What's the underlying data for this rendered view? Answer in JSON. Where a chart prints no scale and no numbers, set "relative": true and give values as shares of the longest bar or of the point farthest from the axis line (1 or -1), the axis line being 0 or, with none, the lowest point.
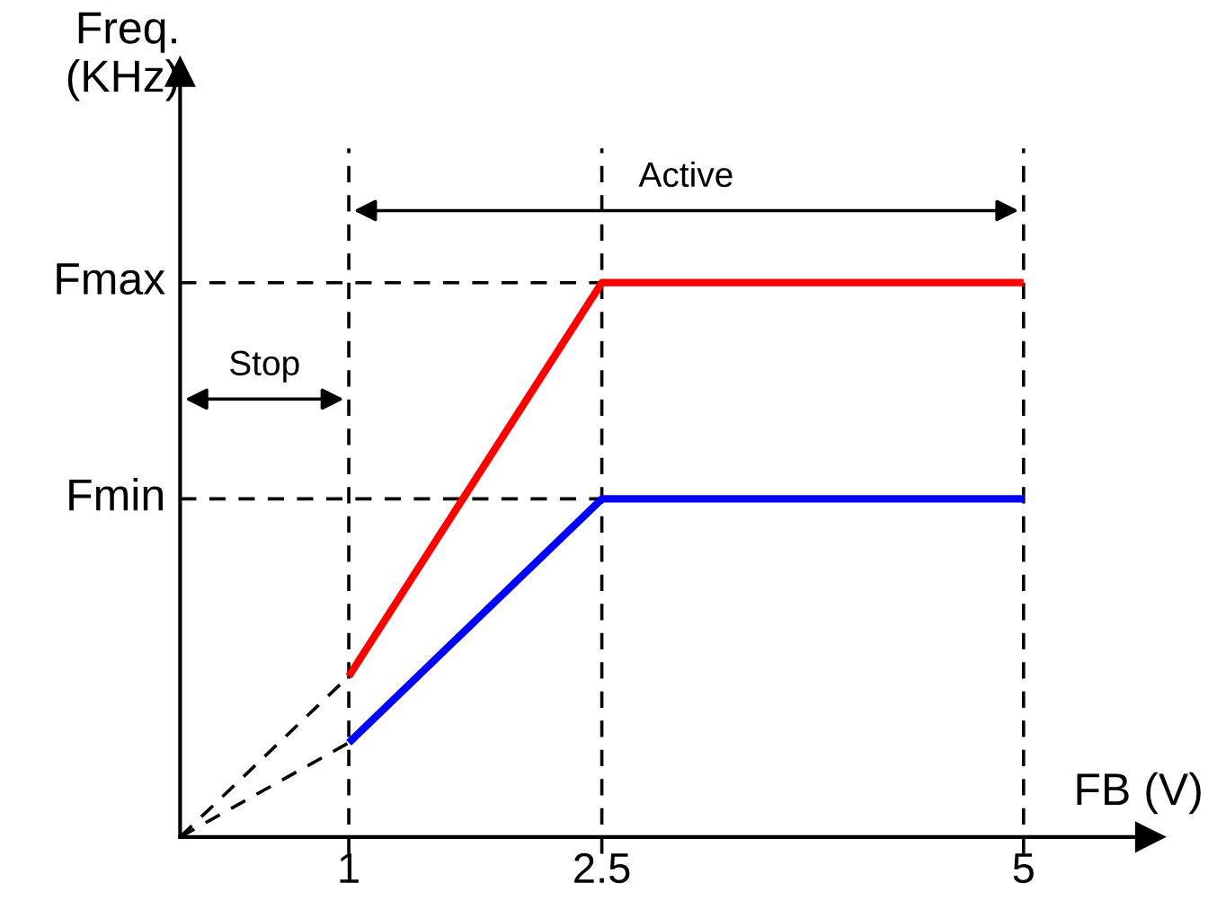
{
  "chart_data": {
    "type": "line",
    "relative": true,
    "xlabel": "FB (V)",
    "ylabel": "Freq.\n(KHz)",
    "xlim": [
      0,
      5.75
    ],
    "xticks": [
      1,
      2.5,
      5
    ],
    "grid": false,
    "line_style": "solid",
    "marker": "none",
    "series": [
      {
        "color": "#ff0000",
        "x": [
          1,
          2.5,
          5
        ],
        "values": [
          0.29,
          1,
          1
        ]
      },
      {
        "color": "#0000ff",
        "x": [
          1,
          2.5,
          5
        ],
        "values": [
          0.17,
          0.61,
          0.61
        ]
      },
      {
        "color": "#000000",
        "line_style": "dashed",
        "x": [
          0,
          1
        ],
        "values": [
          0,
          0.29
        ]
      },
      {
        "color": "#000000",
        "line_style": "dashed",
        "x": [
          0,
          1
        ],
        "values": [
          0,
          0.17
        ]
      }
    ],
    "ref_lines": [
      {
        "axis": "y",
        "value": 1,
        "label": "Fmax",
        "line_style": "dashed",
        "color": "#000000"
      },
      {
        "axis": "y",
        "value": 0.61,
        "label": "Fmin",
        "line_style": "dashed",
        "color": "#000000"
      },
      {
        "axis": "x",
        "value": 1,
        "line_style": "dashed",
        "color": "#000000"
      },
      {
        "axis": "x",
        "value": 2.5,
        "line_style": "dashed",
        "color": "#000000"
      },
      {
        "axis": "x",
        "value": 5,
        "line_style": "dashed",
        "color": "#000000"
      }
    ],
    "annotations": [
      "Active",
      "Stop"
    ]
  }
}
